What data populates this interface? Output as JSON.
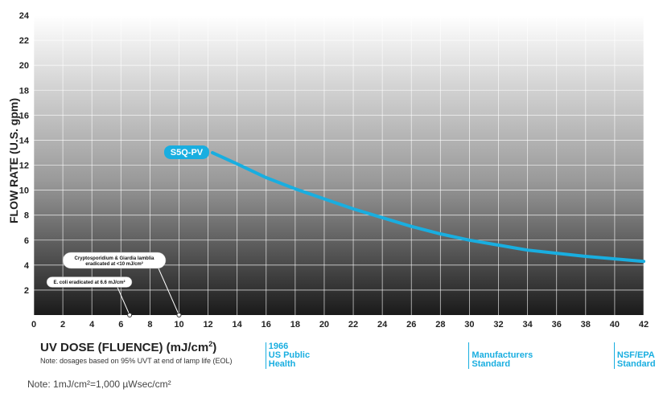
{
  "chart_data": {
    "type": "line",
    "xlim": [
      0,
      42
    ],
    "ylim": [
      0,
      24
    ],
    "x_ticks": [
      0,
      2,
      4,
      6,
      8,
      10,
      12,
      14,
      16,
      18,
      20,
      22,
      24,
      26,
      28,
      30,
      32,
      34,
      36,
      38,
      40,
      42
    ],
    "y_ticks": [
      2,
      4,
      6,
      8,
      10,
      12,
      14,
      16,
      18,
      20,
      22,
      24
    ],
    "y_zero_label": "0",
    "grid": true,
    "ylabel": "FLOW RATE (U.S. gpm)",
    "xlabel_text": "UV DOSE (FLUENCE) (mJ/cm",
    "xlabel_sup": "2",
    "xlabel_close": ")",
    "dose_note": "Note: dosages based on 95% UVT at end of lamp life (EOL)",
    "unit_note": "Note: 1mJ/cm²=1,000 µWsec/cm²",
    "series": [
      {
        "name": "S5Q-PV",
        "color": "#19aee0",
        "x": [
          12.3,
          14,
          16,
          18,
          20,
          22,
          24,
          26,
          28,
          30,
          32,
          34,
          36,
          38,
          40,
          42
        ],
        "y": [
          13.0,
          12.1,
          11.0,
          10.1,
          9.3,
          8.5,
          7.8,
          7.1,
          6.5,
          6.0,
          5.6,
          5.2,
          4.95,
          4.7,
          4.5,
          4.3
        ]
      }
    ],
    "annotations": [
      {
        "line1": "Cryptosporidium & Giardia lamblia",
        "line2": "eradicated at <10 mJ/cm²",
        "x": 10,
        "y": 0
      },
      {
        "line1": "E. coli eradicated at 6.6 mJ/cm²",
        "line2": "",
        "x": 6.6,
        "y": 0
      }
    ],
    "standards": [
      {
        "x": 16,
        "label": "1966\nUS Public\nHealth"
      },
      {
        "x": 30,
        "label": "Manufacturers\nStandard"
      },
      {
        "x": 40,
        "label": "NSF/EPA\nStandard"
      }
    ]
  }
}
